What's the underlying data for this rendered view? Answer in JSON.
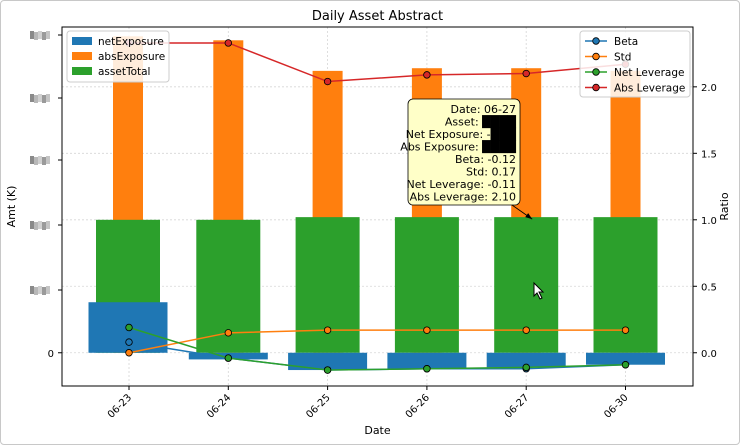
{
  "chart_data": {
    "type": "bar",
    "title": "Daily Asset Abstract",
    "xlabel": "Date",
    "ylabel": "Amt (K)",
    "y2label": "Ratio",
    "categories": [
      "06-23",
      "06-24",
      "06-25",
      "06-26",
      "06-27",
      "06-30"
    ],
    "bar_series": [
      {
        "name": "netExposure",
        "color": "#1f77b4",
        "values": [
          0.38,
          -0.05,
          -0.13,
          -0.12,
          -0.11,
          -0.09
        ]
      },
      {
        "name": "absExposure",
        "color": "#ff7f0e",
        "values": [
          2.38,
          2.35,
          2.12,
          2.14,
          2.14,
          2.12
        ]
      },
      {
        "name": "assetTotal",
        "color": "#2ca02c",
        "values": [
          1.0,
          1.0,
          1.02,
          1.02,
          1.02,
          1.02
        ]
      }
    ],
    "line_series": [
      {
        "name": "Beta",
        "color": "#1f77b4",
        "values": [
          0.08,
          -0.04,
          -0.13,
          -0.12,
          -0.12,
          -0.09
        ]
      },
      {
        "name": "Std",
        "color": "#ff7f0e",
        "values": [
          0.0,
          0.15,
          0.17,
          0.17,
          0.17,
          0.17
        ]
      },
      {
        "name": "Net Leverage",
        "color": "#2ca02c",
        "values": [
          0.19,
          -0.04,
          -0.13,
          -0.12,
          -0.11,
          -0.09
        ]
      },
      {
        "name": "Abs Leverage",
        "color": "#d62728",
        "values": [
          2.33,
          2.33,
          2.04,
          2.09,
          2.1,
          2.17
        ]
      }
    ],
    "y2lim": [
      -0.25,
      2.45
    ],
    "y2ticks": [
      "0.0",
      "0.5",
      "1.0",
      "1.5",
      "2.0"
    ],
    "y2tick_values": [
      0,
      0.5,
      1.0,
      1.5,
      2.0
    ],
    "ylim": [
      -0.25,
      2.45
    ],
    "yticks": [
      "0"
    ],
    "ytick_values": [
      0
    ],
    "grid": true,
    "legend_left": "top-left",
    "legend_right": "top-right",
    "tooltip": {
      "lines": [
        "Date: 06-27",
        "Asset: ████",
        "Net Exposure: -███",
        "Abs Exposure: ████",
        "Beta: -0.12",
        "Std: 0.17",
        "Net Leverage: -0.11",
        "Abs Leverage: 2.10"
      ],
      "target_index": 4,
      "target_value": 1.02
    }
  }
}
